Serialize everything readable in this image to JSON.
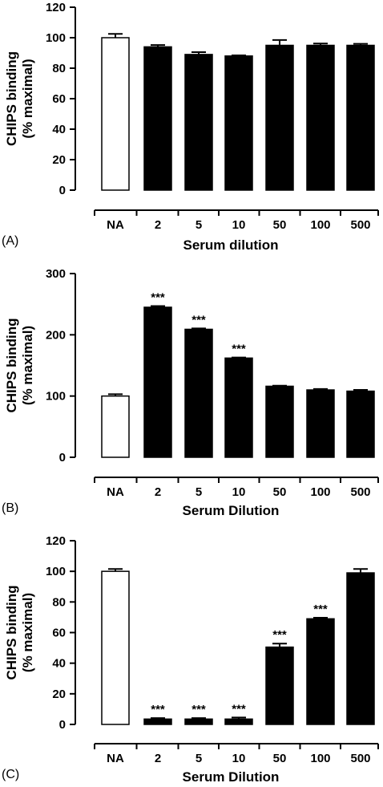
{
  "chart_data": [
    {
      "type": "bar",
      "panel_label": "(A)",
      "categories": [
        "NA",
        "2",
        "5",
        "10",
        "50",
        "100",
        "500"
      ],
      "values": [
        100,
        94,
        89,
        88,
        95,
        95,
        95
      ],
      "errors": [
        2.5,
        1.2,
        1.5,
        0.4,
        3.5,
        1.2,
        1.0
      ],
      "bar_fills": [
        "#ffffff",
        "#000000",
        "#000000",
        "#000000",
        "#000000",
        "#000000",
        "#000000"
      ],
      "significance": [
        "",
        "",
        "",
        "",
        "",
        "",
        ""
      ],
      "xlabel": "Serum dilution",
      "ylabel_lines": [
        "CHIPS binding",
        "(% maximal)"
      ],
      "ylim": [
        0,
        120
      ],
      "yticks": [
        0,
        20,
        40,
        60,
        80,
        100,
        120
      ],
      "grid": false
    },
    {
      "type": "bar",
      "panel_label": "(B)",
      "categories": [
        "NA",
        "2",
        "5",
        "10",
        "50",
        "100",
        "500"
      ],
      "values": [
        100,
        245,
        209,
        162,
        116,
        110,
        108
      ],
      "errors": [
        3,
        2,
        1.5,
        1,
        1,
        1.5,
        2
      ],
      "bar_fills": [
        "#ffffff",
        "#000000",
        "#000000",
        "#000000",
        "#000000",
        "#000000",
        "#000000"
      ],
      "significance": [
        "",
        "***",
        "***",
        "***",
        "",
        "",
        ""
      ],
      "xlabel": "Serum Dilution",
      "ylabel_lines": [
        "CHIPS binding",
        "(% maximal)"
      ],
      "ylim": [
        0,
        300
      ],
      "yticks": [
        0,
        100,
        200,
        300
      ],
      "grid": false
    },
    {
      "type": "bar",
      "panel_label": "(C)",
      "categories": [
        "NA",
        "2",
        "5",
        "10",
        "50",
        "100",
        "500"
      ],
      "values": [
        100,
        3.5,
        3.5,
        3.5,
        50.5,
        69,
        99
      ],
      "errors": [
        1.5,
        0.6,
        0.6,
        1.0,
        2.3,
        0.7,
        2.5
      ],
      "bar_fills": [
        "#ffffff",
        "#000000",
        "#000000",
        "#000000",
        "#000000",
        "#000000",
        "#000000"
      ],
      "significance": [
        "",
        "***",
        "***",
        "***",
        "***",
        "***",
        ""
      ],
      "xlabel": "Serum Dilution",
      "ylabel_lines": [
        "CHIPS binding",
        "(% maximal)"
      ],
      "ylim": [
        0,
        120
      ],
      "yticks": [
        0,
        20,
        40,
        60,
        80,
        100,
        120
      ],
      "grid": false
    }
  ]
}
